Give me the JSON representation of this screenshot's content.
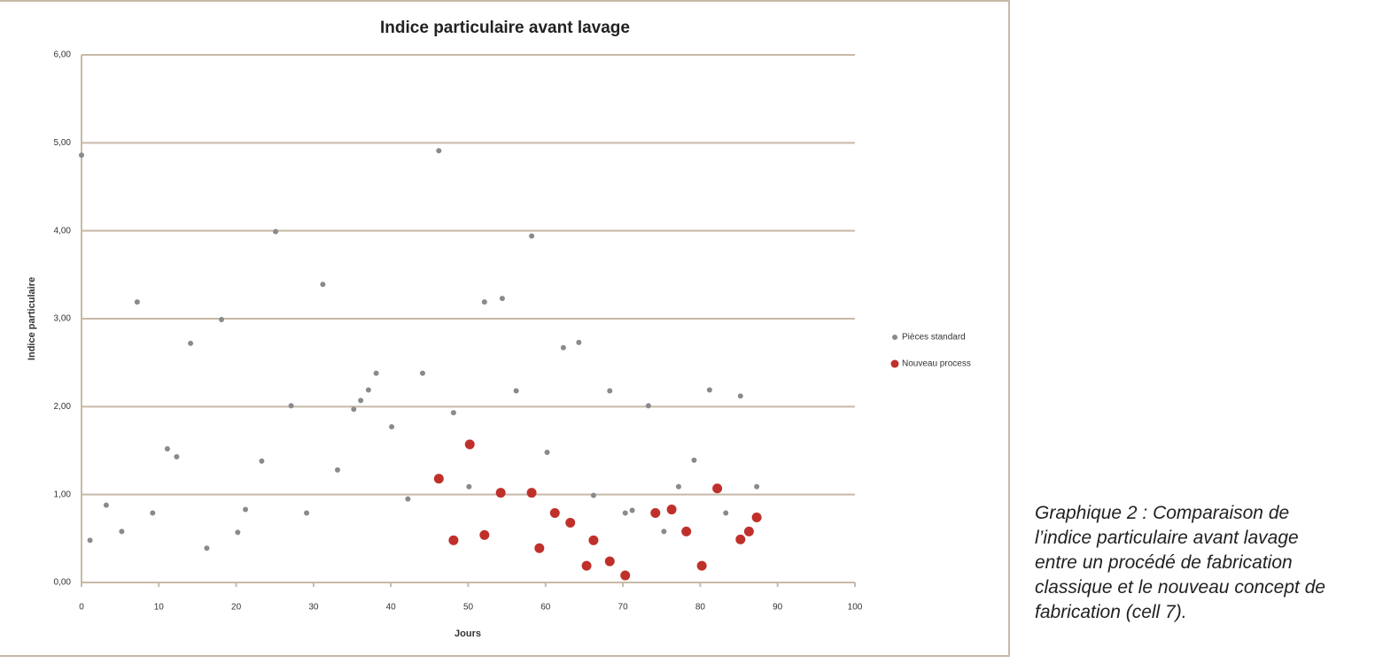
{
  "chart_data": {
    "type": "scatter",
    "title": "Indice particulaire avant lavage",
    "x_label": "Jours",
    "y_label": "Indice particulaire",
    "xlim": [
      0,
      100
    ],
    "xticks": [
      0,
      10,
      20,
      30,
      40,
      50,
      60,
      70,
      80,
      90,
      100
    ],
    "ylim": [
      0,
      6
    ],
    "yticks": [
      {
        "value": 0,
        "label": "0,00"
      },
      {
        "value": 1,
        "label": "1,00"
      },
      {
        "value": 2,
        "label": "2,00"
      },
      {
        "value": 3,
        "label": "3,00"
      },
      {
        "value": 4,
        "label": "4,00"
      },
      {
        "value": 5,
        "label": "5,00"
      },
      {
        "value": 6,
        "label": "6,00"
      }
    ],
    "grid": true,
    "legend": "right",
    "series": [
      {
        "name": "Pièces standard",
        "color": "#8a8a8a",
        "x": [
          0,
          1.1,
          3.2,
          5.2,
          7.2,
          9.2,
          11.1,
          12.3,
          14.1,
          16.2,
          18.1,
          20.2,
          21.2,
          23.3,
          25.1,
          27.1,
          29.1,
          31.2,
          33.1,
          35.2,
          36.1,
          37.1,
          38.1,
          40.1,
          42.2,
          44.1,
          46.2,
          48.1,
          50.1,
          52.1,
          54.2,
          54.4,
          56.2,
          58.2,
          60.2,
          62.3,
          64.3,
          66.2,
          68.3,
          70.3,
          71.2,
          73.3,
          75.3,
          77.2,
          79.2,
          81.2,
          83.3,
          85.2,
          87.3
        ],
        "values": [
          4.86,
          0.48,
          0.88,
          0.58,
          3.19,
          0.79,
          1.52,
          1.43,
          2.72,
          0.39,
          2.99,
          0.57,
          0.83,
          1.38,
          3.99,
          2.01,
          0.79,
          3.39,
          1.28,
          1.97,
          2.07,
          2.19,
          2.38,
          1.77,
          0.95,
          2.38,
          4.91,
          1.93,
          1.09,
          3.19,
          1.02,
          3.23,
          2.18,
          3.94,
          1.48,
          2.67,
          2.73,
          0.99,
          2.18,
          0.79,
          0.82,
          2.01,
          0.58,
          1.09,
          1.39,
          2.19,
          0.79,
          2.12,
          1.09
        ]
      },
      {
        "name": "Nouveau process",
        "color": "#c0302a",
        "x": [
          46.2,
          48.1,
          50.2,
          52.1,
          54.2,
          58.2,
          59.2,
          61.2,
          63.2,
          65.3,
          66.2,
          68.3,
          70.3,
          74.2,
          76.3,
          78.2,
          80.2,
          82.2,
          85.2,
          86.3,
          87.3
        ],
        "values": [
          1.18,
          0.48,
          1.57,
          0.54,
          1.02,
          1.02,
          0.39,
          0.79,
          0.68,
          0.19,
          0.48,
          0.24,
          0.08,
          0.79,
          0.83,
          0.58,
          0.19,
          1.07,
          0.49,
          0.58,
          0.74
        ]
      }
    ]
  },
  "caption": {
    "lines": [
      "Graphique 2 : Comparaison de",
      "l’indice particulaire avant lavage",
      "entre un procédé de fabrication",
      "classique et le nouveau concept de",
      "fabrication (cell 7)."
    ]
  }
}
